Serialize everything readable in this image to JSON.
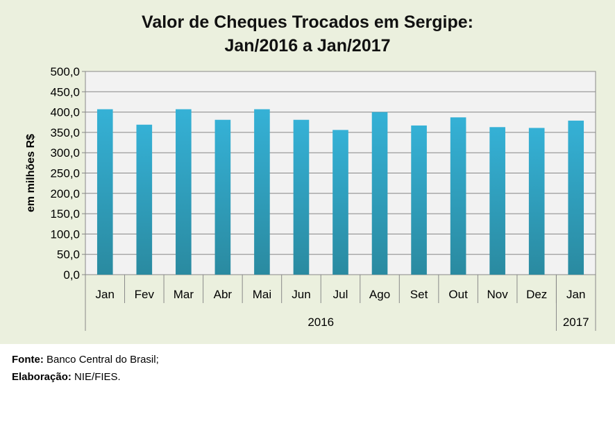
{
  "chart_data": {
    "type": "bar",
    "title": [
      "Valor de Cheques Trocados em Sergipe:",
      "Jan/2016 a  Jan/2017"
    ],
    "ylabel": "em milhões R$",
    "xlabel": "",
    "ylim": [
      0,
      500
    ],
    "yticks": [
      "0,0",
      "50,0",
      "100,0",
      "150,0",
      "200,0",
      "250,0",
      "300,0",
      "350,0",
      "400,0",
      "450,0",
      "500,0"
    ],
    "grid": true,
    "categories": [
      "Jan",
      "Fev",
      "Mar",
      "Abr",
      "Mai",
      "Jun",
      "Jul",
      "Ago",
      "Set",
      "Out",
      "Nov",
      "Dez",
      "Jan"
    ],
    "groups": [
      {
        "label": "2016",
        "count": 12
      },
      {
        "label": "2017",
        "count": 1
      }
    ],
    "values": [
      407,
      369,
      407,
      381,
      407,
      381,
      356,
      400,
      367,
      387,
      363,
      361,
      379
    ],
    "bar_color": "#35b1d6",
    "bar_color_bottom": "#2a8aa0"
  },
  "footer": {
    "source_label": "Fonte:",
    "source_value": " Banco Central do Brasil;",
    "elab_label": "Elaboração:",
    "elab_value": " NIE/FIES."
  }
}
